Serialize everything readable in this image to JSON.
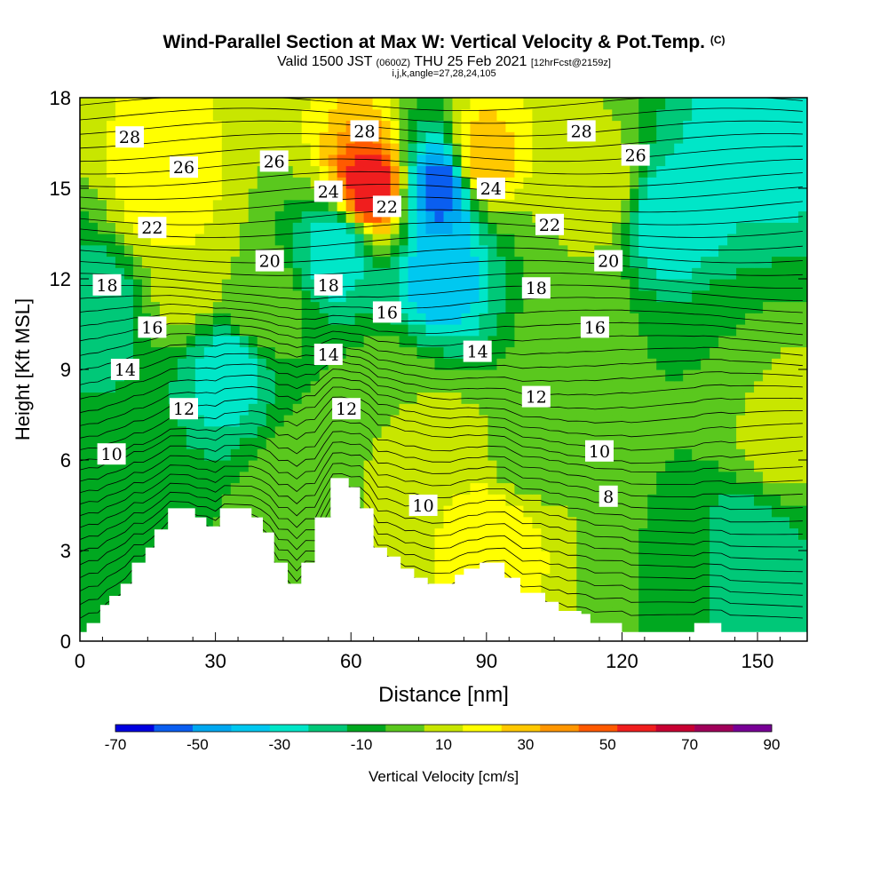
{
  "title": {
    "main": "Wind-Parallel Section at Max W: Vertical Velocity & Pot.Temp.",
    "copyright": "(C)",
    "valid_prefix": "Valid 1500 JST",
    "utc": "(0600Z)",
    "valid_date": "THU 25 Feb 2021",
    "forecast": "[12hrFcst@2159z]",
    "indices": "i,j,k,angle=27,28,24,105"
  },
  "chart_data": {
    "type": "heatmap",
    "xlabel": "Distance [nm]",
    "ylabel": "Height [Kft MSL]",
    "xlim": [
      0,
      161
    ],
    "ylim": [
      0,
      18
    ],
    "xticks": [
      0,
      30,
      60,
      90,
      120,
      150
    ],
    "yticks": [
      0,
      3,
      6,
      9,
      12,
      15,
      18
    ],
    "colorbar": {
      "label": "Vertical Velocity [cm/s]",
      "ticks": [
        -70,
        -50,
        -30,
        -10,
        10,
        30,
        50,
        70,
        90
      ],
      "levels": [
        -70,
        -60,
        -50,
        -40,
        -30,
        -20,
        -10,
        0,
        10,
        20,
        30,
        40,
        50,
        60,
        70,
        80,
        90
      ],
      "colors": [
        "#0000e0",
        "#0a5ef0",
        "#00a8f0",
        "#00c8f0",
        "#00e6c8",
        "#00c878",
        "#00a820",
        "#5ac81e",
        "#c8e600",
        "#ffff00",
        "#ffc800",
        "#ff9600",
        "#ff5a00",
        "#f01e1e",
        "#c80032",
        "#a0005a",
        "#780096"
      ]
    },
    "theta_contour_labels": [
      {
        "text": "28",
        "x": 11,
        "y": 16.7
      },
      {
        "text": "26",
        "x": 23,
        "y": 15.7
      },
      {
        "text": "22",
        "x": 16,
        "y": 13.7
      },
      {
        "text": "18",
        "x": 6,
        "y": 11.8
      },
      {
        "text": "16",
        "x": 16,
        "y": 10.4
      },
      {
        "text": "14",
        "x": 10,
        "y": 9.0
      },
      {
        "text": "12",
        "x": 23,
        "y": 7.7
      },
      {
        "text": "10",
        "x": 7,
        "y": 6.2
      },
      {
        "text": "26",
        "x": 43,
        "y": 15.9
      },
      {
        "text": "20",
        "x": 42,
        "y": 12.6
      },
      {
        "text": "24",
        "x": 55,
        "y": 14.9
      },
      {
        "text": "18",
        "x": 55,
        "y": 11.8
      },
      {
        "text": "14",
        "x": 55,
        "y": 9.5
      },
      {
        "text": "12",
        "x": 59,
        "y": 7.7
      },
      {
        "text": "28",
        "x": 63,
        "y": 16.9
      },
      {
        "text": "22",
        "x": 68,
        "y": 14.4
      },
      {
        "text": "16",
        "x": 68,
        "y": 10.9
      },
      {
        "text": "10",
        "x": 76,
        "y": 4.5
      },
      {
        "text": "24",
        "x": 91,
        "y": 15.0
      },
      {
        "text": "14",
        "x": 88,
        "y": 9.6
      },
      {
        "text": "18",
        "x": 101,
        "y": 11.7
      },
      {
        "text": "22",
        "x": 104,
        "y": 13.8
      },
      {
        "text": "12",
        "x": 101,
        "y": 8.1
      },
      {
        "text": "28",
        "x": 111,
        "y": 16.9
      },
      {
        "text": "26",
        "x": 123,
        "y": 16.1
      },
      {
        "text": "20",
        "x": 117,
        "y": 12.6
      },
      {
        "text": "16",
        "x": 114,
        "y": 10.4
      },
      {
        "text": "10",
        "x": 115,
        "y": 6.3
      },
      {
        "text": "8",
        "x": 117,
        "y": 4.8
      }
    ],
    "terrain_kft": [
      [
        0,
        0.3
      ],
      [
        1.5,
        0.6
      ],
      [
        3,
        0.6
      ],
      [
        4.5,
        1.2
      ],
      [
        6.5,
        1.5
      ],
      [
        9,
        1.9
      ],
      [
        11.5,
        2.6
      ],
      [
        14.5,
        3.1
      ],
      [
        16.5,
        3.7
      ],
      [
        19.5,
        4.4
      ],
      [
        25.5,
        4.1
      ],
      [
        28,
        3.8
      ],
      [
        31,
        4.4
      ],
      [
        38,
        4.1
      ],
      [
        40.5,
        3.6
      ],
      [
        43,
        2.6
      ],
      [
        46,
        1.9
      ],
      [
        49,
        2.6
      ],
      [
        52,
        4.1
      ],
      [
        55.5,
        5.4
      ],
      [
        59.5,
        5.1
      ],
      [
        62,
        4.4
      ],
      [
        65,
        3.1
      ],
      [
        68,
        2.8
      ],
      [
        71,
        2.4
      ],
      [
        74,
        2.1
      ],
      [
        77,
        1.9
      ],
      [
        80,
        1.9
      ],
      [
        83,
        2.2
      ],
      [
        85,
        2.4
      ],
      [
        88.5,
        2.6
      ],
      [
        94,
        2.1
      ],
      [
        97.5,
        1.6
      ],
      [
        103,
        1.3
      ],
      [
        106,
        1.0
      ],
      [
        111,
        0.9
      ],
      [
        113,
        0.6
      ],
      [
        120,
        0.3
      ],
      [
        136,
        0.6
      ],
      [
        142,
        0.3
      ],
      [
        161,
        0.3
      ]
    ],
    "w_field_samples": [
      {
        "x": 4,
        "y": 11,
        "w": -20
      },
      {
        "x": 19,
        "y": 15,
        "w": 30
      },
      {
        "x": 33,
        "y": 9,
        "w": -30
      },
      {
        "x": 57,
        "y": 13,
        "w": -30
      },
      {
        "x": 64,
        "y": 15,
        "w": 70
      },
      {
        "x": 80,
        "y": 15,
        "w": -60
      },
      {
        "x": 80,
        "y": 12,
        "w": -40
      },
      {
        "x": 89,
        "y": 16,
        "w": 40
      },
      {
        "x": 92,
        "y": 3.5,
        "w": 30
      },
      {
        "x": 80,
        "y": 6,
        "w": 20
      },
      {
        "x": 115,
        "y": 15,
        "w": 20
      },
      {
        "x": 130,
        "y": 14,
        "w": -30
      },
      {
        "x": 150,
        "y": 17,
        "w": -30
      },
      {
        "x": 148,
        "y": 3,
        "w": -20
      },
      {
        "x": 140,
        "y": 9,
        "w": 0
      },
      {
        "x": 155,
        "y": 7,
        "w": 20
      },
      {
        "x": 10,
        "y": 5,
        "w": 0
      },
      {
        "x": 48,
        "y": 5,
        "w": 10
      },
      {
        "x": 98,
        "y": 6,
        "w": 5
      },
      {
        "x": 128,
        "y": 3,
        "w": 0
      },
      {
        "x": 110,
        "y": 11,
        "w": 10
      },
      {
        "x": 40,
        "y": 11,
        "w": 10
      },
      {
        "x": 24,
        "y": 12,
        "w": 20
      },
      {
        "x": 70,
        "y": 8,
        "w": 10
      }
    ]
  }
}
